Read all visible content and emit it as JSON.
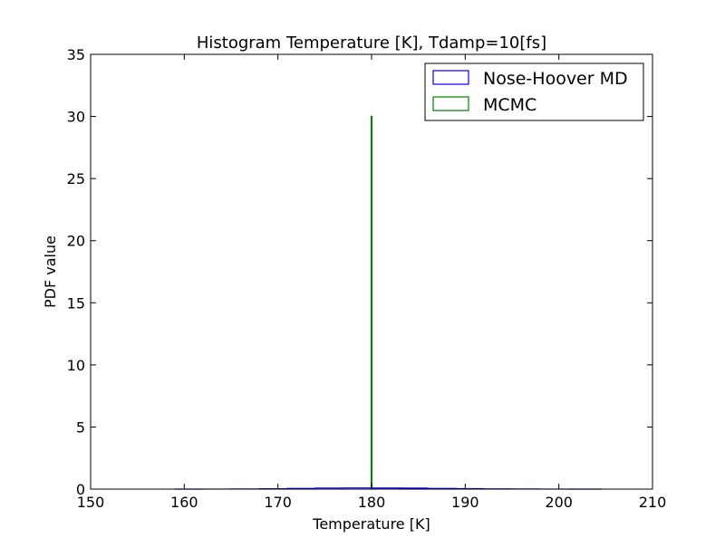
{
  "chart_data": {
    "type": "histogram",
    "title": "Histogram Temperature [K], Tdamp=10[fs]",
    "xlabel": "Temperature [K]",
    "ylabel": "PDF value",
    "xlim": [
      150,
      210
    ],
    "ylim": [
      0,
      35
    ],
    "xticks": [
      "150",
      "160",
      "170",
      "180",
      "190",
      "200",
      "210"
    ],
    "yticks": [
      "0",
      "5",
      "10",
      "15",
      "20",
      "25",
      "30",
      "35"
    ],
    "grid": false,
    "legend_position": "top-right",
    "series": [
      {
        "name": "Nose-Hoover MD",
        "color": "#0000ff",
        "style": "step",
        "x": [
          159,
          162,
          165,
          168,
          171,
          174,
          177,
          180,
          183,
          186,
          189,
          192,
          195,
          198,
          201,
          204.5
        ],
        "y": [
          0.001,
          0.004,
          0.012,
          0.03,
          0.06,
          0.085,
          0.095,
          0.092,
          0.08,
          0.06,
          0.038,
          0.02,
          0.009,
          0.004,
          0.001,
          0.0
        ]
      },
      {
        "name": "MCMC",
        "color": "#008000",
        "style": "step",
        "x": [
          179.98,
          180.02
        ],
        "y": [
          30,
          30
        ]
      }
    ]
  }
}
